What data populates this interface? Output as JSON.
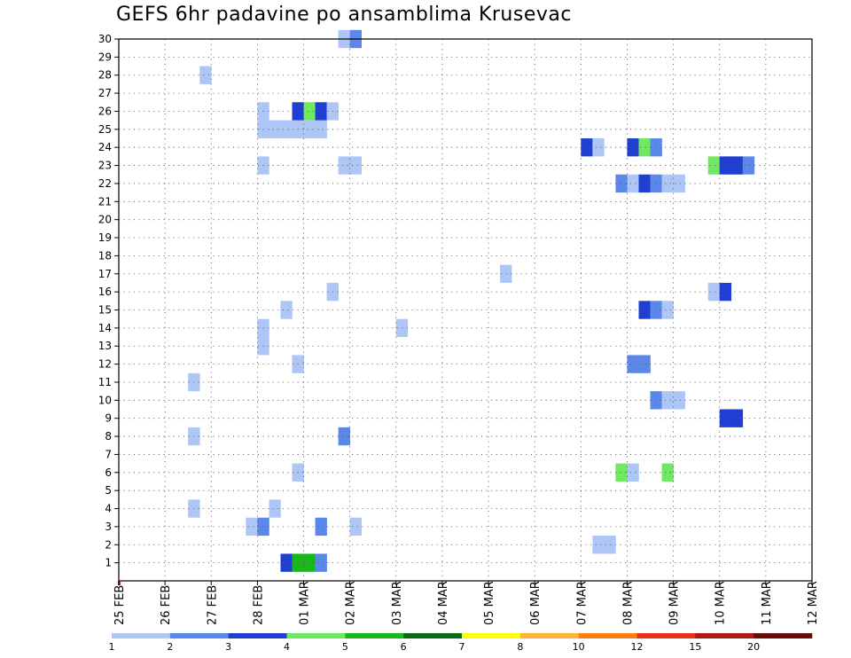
{
  "chart_data": {
    "type": "heatmap",
    "title": "GEFS 6hr padavine po ansamblima Krusevac",
    "x_tick_labels": [
      "25 FEB",
      "26 FEB",
      "27 FEB",
      "28 FEB",
      "01 MAR",
      "02 MAR",
      "03 MAR",
      "04 MAR",
      "05 MAR",
      "06 MAR",
      "07 MAR",
      "08 MAR",
      "09 MAR",
      "10 MAR",
      "11 MAR",
      "12 MAR"
    ],
    "y_tick_labels": [
      "1",
      "2",
      "3",
      "4",
      "5",
      "6",
      "7",
      "8",
      "9",
      "10",
      "11",
      "12",
      "13",
      "14",
      "15",
      "16",
      "17",
      "18",
      "19",
      "20",
      "21",
      "22",
      "23",
      "24",
      "25",
      "26",
      "27",
      "28",
      "29",
      "30"
    ],
    "time_step_hours": 6,
    "members": 30,
    "grid": true,
    "legend": {
      "placement": "bottom",
      "labels": [
        "1",
        "2",
        "3",
        "4",
        "5",
        "6",
        "7",
        "8",
        "10",
        "12",
        "15",
        "20"
      ],
      "colors": [
        "#aec6f5",
        "#5b87ea",
        "#1f3fd2",
        "#6fe95f",
        "#16b81a",
        "#0a6b12",
        "#ffff00",
        "#ffb33a",
        "#ff7f0f",
        "#e5301a",
        "#b01a12",
        "#6b0a0a"
      ]
    },
    "cells": [
      {
        "member": 1,
        "step": 15,
        "level": 3
      },
      {
        "member": 1,
        "step": 16,
        "level": 5
      },
      {
        "member": 1,
        "step": 17,
        "level": 5
      },
      {
        "member": 1,
        "step": 18,
        "level": 2
      },
      {
        "member": 2,
        "step": 42,
        "level": 1
      },
      {
        "member": 2,
        "step": 43,
        "level": 1
      },
      {
        "member": 2,
        "step": 118,
        "level": 2
      },
      {
        "member": 3,
        "step": 12,
        "level": 1
      },
      {
        "member": 3,
        "step": 13,
        "level": 2
      },
      {
        "member": 3,
        "step": 18,
        "level": 2
      },
      {
        "member": 3,
        "step": 21,
        "level": 1
      },
      {
        "member": 4,
        "step": 7,
        "level": 1
      },
      {
        "member": 4,
        "step": 14,
        "level": 1
      },
      {
        "member": 6,
        "step": 16,
        "level": 1
      },
      {
        "member": 6,
        "step": 44,
        "level": 4
      },
      {
        "member": 6,
        "step": 45,
        "level": 1
      },
      {
        "member": 6,
        "step": 48,
        "level": 4
      },
      {
        "member": 6,
        "step": 114,
        "level": 1
      },
      {
        "member": 6,
        "step": 118,
        "level": 1
      },
      {
        "member": 7,
        "step": 91,
        "level": 1
      },
      {
        "member": 7,
        "step": 92,
        "level": 2
      },
      {
        "member": 7,
        "step": 93,
        "level": 1
      },
      {
        "member": 8,
        "step": 7,
        "level": 1
      },
      {
        "member": 8,
        "step": 20,
        "level": 2
      },
      {
        "member": 9,
        "step": 53,
        "level": 3
      },
      {
        "member": 9,
        "step": 54,
        "level": 3
      },
      {
        "member": 10,
        "step": 47,
        "level": 2
      },
      {
        "member": 10,
        "step": 48,
        "level": 1
      },
      {
        "member": 10,
        "step": 49,
        "level": 1
      },
      {
        "member": 10,
        "step": 90,
        "level": 1
      },
      {
        "member": 10,
        "step": 91,
        "level": 5
      },
      {
        "member": 10,
        "step": 92,
        "level": 3
      },
      {
        "member": 11,
        "step": 7,
        "level": 1
      },
      {
        "member": 12,
        "step": 16,
        "level": 1
      },
      {
        "member": 12,
        "step": 45,
        "level": 2
      },
      {
        "member": 12,
        "step": 46,
        "level": 2
      },
      {
        "member": 13,
        "step": 13,
        "level": 1
      },
      {
        "member": 14,
        "step": 13,
        "level": 1
      },
      {
        "member": 14,
        "step": 25,
        "level": 1
      },
      {
        "member": 15,
        "step": 15,
        "level": 1
      },
      {
        "member": 15,
        "step": 46,
        "level": 3
      },
      {
        "member": 15,
        "step": 47,
        "level": 2
      },
      {
        "member": 15,
        "step": 48,
        "level": 1
      },
      {
        "member": 16,
        "step": 19,
        "level": 1
      },
      {
        "member": 16,
        "step": 52,
        "level": 1
      },
      {
        "member": 16,
        "step": 53,
        "level": 3
      },
      {
        "member": 16,
        "step": 97,
        "level": 3
      },
      {
        "member": 16,
        "step": 98,
        "level": 5
      },
      {
        "member": 16,
        "step": 99,
        "level": 3
      },
      {
        "member": 16,
        "step": 100,
        "level": 6
      },
      {
        "member": 16,
        "step": 101,
        "level": 1
      },
      {
        "member": 16,
        "step": 120,
        "level": 10
      },
      {
        "member": 17,
        "step": 34,
        "level": 1
      },
      {
        "member": 17,
        "step": 95,
        "level": 7
      },
      {
        "member": 17,
        "step": 97,
        "level": 1
      },
      {
        "member": 17,
        "step": 99,
        "level": 1
      },
      {
        "member": 17,
        "step": 100,
        "level": 2
      },
      {
        "member": 17,
        "step": 101,
        "level": 3
      },
      {
        "member": 19,
        "step": 95,
        "level": 5
      },
      {
        "member": 19,
        "step": 103,
        "level": 8
      },
      {
        "member": 19,
        "step": 104,
        "level": 6
      },
      {
        "member": 19,
        "step": 105,
        "level": 6
      },
      {
        "member": 19,
        "step": 106,
        "level": 4
      },
      {
        "member": 20,
        "step": 95,
        "level": 5
      },
      {
        "member": 20,
        "step": 103,
        "level": 8
      },
      {
        "member": 20,
        "step": 104,
        "level": 6
      },
      {
        "member": 20,
        "step": 105,
        "level": 6
      },
      {
        "member": 20,
        "step": 106,
        "level": 4
      },
      {
        "member": 21,
        "step": 103,
        "level": 2
      },
      {
        "member": 21,
        "step": 104,
        "level": 1
      },
      {
        "member": 22,
        "step": 44,
        "level": 2
      },
      {
        "member": 22,
        "step": 45,
        "level": 1
      },
      {
        "member": 22,
        "step": 46,
        "level": 3
      },
      {
        "member": 22,
        "step": 47,
        "level": 2
      },
      {
        "member": 22,
        "step": 48,
        "level": 1
      },
      {
        "member": 22,
        "step": 49,
        "level": 1
      },
      {
        "member": 23,
        "step": 13,
        "level": 1
      },
      {
        "member": 23,
        "step": 20,
        "level": 1
      },
      {
        "member": 23,
        "step": 21,
        "level": 1
      },
      {
        "member": 23,
        "step": 52,
        "level": 4
      },
      {
        "member": 23,
        "step": 53,
        "level": 3
      },
      {
        "member": 23,
        "step": 54,
        "level": 3
      },
      {
        "member": 23,
        "step": 55,
        "level": 2
      },
      {
        "member": 23,
        "step": 109,
        "level": 1
      },
      {
        "member": 23,
        "step": 110,
        "level": 3
      },
      {
        "member": 23,
        "step": 111,
        "level": 1
      },
      {
        "member": 24,
        "step": 41,
        "level": 3
      },
      {
        "member": 24,
        "step": 42,
        "level": 1
      },
      {
        "member": 24,
        "step": 45,
        "level": 3
      },
      {
        "member": 24,
        "step": 46,
        "level": 4
      },
      {
        "member": 24,
        "step": 47,
        "level": 2
      },
      {
        "member": 25,
        "step": 13,
        "level": 1
      },
      {
        "member": 25,
        "step": 14,
        "level": 1
      },
      {
        "member": 25,
        "step": 15,
        "level": 1
      },
      {
        "member": 25,
        "step": 16,
        "level": 1
      },
      {
        "member": 25,
        "step": 17,
        "level": 1
      },
      {
        "member": 25,
        "step": 18,
        "level": 1
      },
      {
        "member": 26,
        "step": 13,
        "level": 1
      },
      {
        "member": 26,
        "step": 16,
        "level": 3
      },
      {
        "member": 26,
        "step": 17,
        "level": 4
      },
      {
        "member": 26,
        "step": 18,
        "level": 3
      },
      {
        "member": 26,
        "step": 19,
        "level": 1
      },
      {
        "member": 26,
        "step": 95,
        "level": 3
      },
      {
        "member": 26,
        "step": 113,
        "level": 2
      },
      {
        "member": 26,
        "step": 120,
        "level": 1
      },
      {
        "member": 27,
        "step": 98,
        "level": 1
      },
      {
        "member": 27,
        "step": 99,
        "level": 1
      },
      {
        "member": 27,
        "step": 100,
        "level": 4
      },
      {
        "member": 27,
        "step": 101,
        "level": 2
      },
      {
        "member": 27,
        "step": 102,
        "level": 1
      },
      {
        "member": 27,
        "step": 117,
        "level": 1
      },
      {
        "member": 27,
        "step": 118,
        "level": 1
      },
      {
        "member": 28,
        "step": 8,
        "level": 1
      },
      {
        "member": 28,
        "step": 102,
        "level": 2
      },
      {
        "member": 29,
        "step": 98,
        "level": 1
      },
      {
        "member": 29,
        "step": 101,
        "level": 1
      },
      {
        "member": 29,
        "step": 118,
        "level": 8
      },
      {
        "member": 29,
        "step": 119,
        "level": 7
      },
      {
        "member": 30,
        "step": 20,
        "level": 1
      },
      {
        "member": 30,
        "step": 21,
        "level": 2
      },
      {
        "member": 30,
        "step": 93,
        "level": 1
      },
      {
        "member": 30,
        "step": 94,
        "level": 1
      },
      {
        "member": 30,
        "step": 104,
        "level": 1
      },
      {
        "member": 30,
        "step": 105,
        "level": 1
      },
      {
        "member": 30,
        "step": 106,
        "level": 1
      }
    ]
  }
}
